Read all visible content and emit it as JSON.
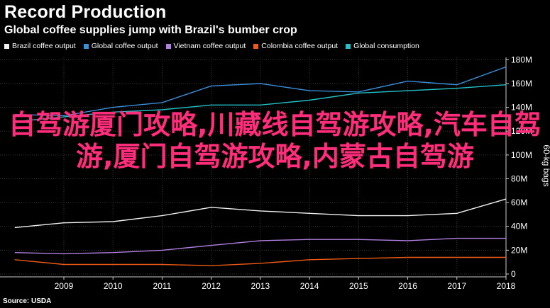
{
  "header": {
    "title": "Record Production",
    "subtitle": "Global coffee supplies jump with Brazil's bumber crop"
  },
  "overlay_text": "自驾游厦门攻略,川藏线自驾游攻略,汽车自驾游,厦门自驾游攻略,内蒙古自驾游",
  "source": "Source: USDA",
  "chart_data": {
    "type": "line",
    "x": [
      2008,
      2009,
      2010,
      2011,
      2012,
      2013,
      2014,
      2015,
      2016,
      2017,
      2018
    ],
    "series": [
      {
        "name": "Brazil coffee output",
        "color": "#f0f0f0",
        "values": [
          39,
          43,
          44,
          49,
          56,
          53,
          51,
          49,
          49,
          51,
          63
        ]
      },
      {
        "name": "Global coffee output",
        "color": "#3a8fd9",
        "values": [
          134,
          133,
          140,
          144,
          158,
          160,
          154,
          153,
          162,
          159,
          174
        ]
      },
      {
        "name": "Vietnam coffee output",
        "color": "#b07fe0",
        "values": [
          18,
          17,
          18,
          20,
          24,
          28,
          29,
          29,
          28,
          30,
          30
        ]
      },
      {
        "name": "Colombia coffee output",
        "color": "#ee5a16",
        "values": [
          12,
          8,
          8,
          8,
          7,
          9,
          12,
          13,
          14,
          14,
          14
        ]
      },
      {
        "name": "Global consumption",
        "color": "#23c1c7",
        "values": [
          128,
          132,
          136,
          138,
          142,
          142,
          146,
          152,
          154,
          156,
          159
        ]
      }
    ],
    "xlim": [
      2008,
      2018
    ],
    "ylim": [
      0,
      180
    ],
    "yticks": [
      0,
      20,
      40,
      60,
      80,
      100,
      120,
      140,
      160,
      180
    ],
    "ytick_labels": [
      "0",
      "20M",
      "40M",
      "60M",
      "80M",
      "100M",
      "120M",
      "140M",
      "160M",
      "180M"
    ],
    "xticks": [
      2009,
      2010,
      2011,
      2012,
      2013,
      2014,
      2015,
      2016,
      2017,
      2018
    ],
    "ylabel": "60-kg bags",
    "y_axis_side": "right",
    "grid": true,
    "legend_position": "top"
  }
}
